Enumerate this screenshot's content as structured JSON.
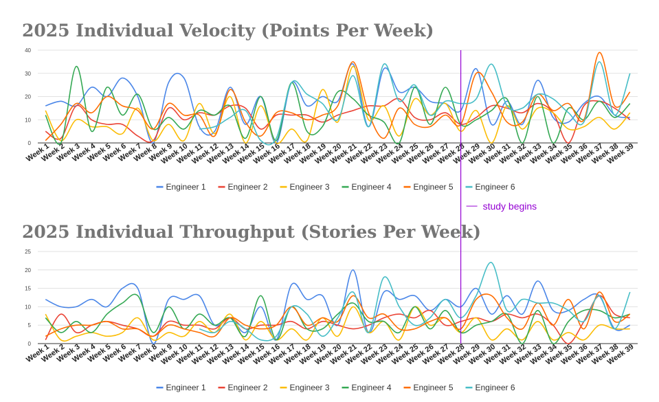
{
  "annotation": {
    "label": "study begins",
    "color": "#9400d3",
    "at_category": "Week 28"
  },
  "series_colors": [
    "#4a86e8",
    "#ea4335",
    "#fbbc04",
    "#34a853",
    "#ff6d01",
    "#46bdc6"
  ],
  "chart_data": [
    {
      "type": "line",
      "title": "2025 Individual Velocity (Points Per Week)",
      "xlabel": "",
      "ylabel": "",
      "ylim": [
        0,
        40
      ],
      "yticks": [
        0,
        10,
        20,
        30,
        40
      ],
      "grid": true,
      "legend": "bottom",
      "categories": [
        "Week 1",
        "Week 2",
        "Week 3",
        "Week 4",
        "Week 5",
        "Week 6",
        "Week 7",
        "Week 8",
        "Week 9",
        "Week 10",
        "Week 11",
        "Week 12",
        "Week 13",
        "Week 14",
        "Week 15",
        "Week 16",
        "Week 17",
        "Week 18",
        "Week 19",
        "Week 20",
        "Week 21",
        "Week 22",
        "Week 23",
        "Week 24",
        "Week 25",
        "Week 26",
        "Week 27",
        "Week 28",
        "Week 29",
        "Week 30",
        "Week 31",
        "Week 32",
        "Week 33",
        "Week 34",
        "Week 35",
        "Week 36",
        "Week 37",
        "Week 38",
        "Week 39"
      ],
      "series": [
        {
          "name": "Engineer 1",
          "values": [
            16,
            18,
            16,
            24,
            20,
            28,
            20,
            0,
            26,
            28,
            7,
            5,
            24,
            8,
            20,
            0,
            26,
            16,
            20,
            18,
            34,
            7,
            32,
            22,
            24,
            18,
            17,
            14,
            32,
            8,
            18,
            8,
            27,
            11,
            9,
            17,
            20,
            12,
            11
          ]
        },
        {
          "name": "Engineer 2",
          "values": [
            5,
            2,
            16,
            10,
            8,
            8,
            3,
            1,
            15,
            10,
            13,
            12,
            16,
            15,
            6,
            12,
            12,
            12,
            9,
            12,
            14,
            16,
            16,
            19,
            11,
            10,
            13,
            8,
            11,
            16,
            15,
            13,
            17,
            13,
            0,
            16,
            18,
            15,
            10
          ]
        },
        {
          "name": "Engineer 3",
          "values": [
            14,
            1,
            10,
            7,
            7,
            4,
            15,
            1,
            8,
            1,
            17,
            4,
            20,
            0,
            16,
            0,
            6,
            1,
            23,
            9,
            33,
            10,
            16,
            3,
            19,
            12,
            17,
            5,
            14,
            0,
            16,
            6,
            15,
            13,
            6,
            7,
            11,
            6,
            13
          ]
        },
        {
          "name": "Engineer 4",
          "values": [
            12,
            0,
            33,
            5,
            24,
            12,
            21,
            6,
            11,
            6,
            14,
            12,
            16,
            2,
            20,
            1,
            26,
            5,
            7,
            22,
            19,
            12,
            9,
            0,
            24,
            8,
            24,
            8,
            10,
            14,
            19,
            0,
            20,
            0,
            15,
            10,
            18,
            11,
            17
          ]
        },
        {
          "name": "Engineer 5",
          "values": [
            1,
            8,
            17,
            13,
            20,
            16,
            14,
            6,
            17,
            12,
            12,
            3,
            23,
            9,
            3,
            13,
            13,
            10,
            12,
            16,
            35,
            13,
            2,
            15,
            8,
            7,
            12,
            8,
            30,
            22,
            9,
            9,
            21,
            14,
            17,
            10,
            39,
            16,
            22
          ]
        },
        {
          "name": "Engineer 6",
          "values": [
            null,
            null,
            null,
            null,
            null,
            null,
            null,
            null,
            null,
            null,
            6,
            7,
            11,
            14,
            1,
            2,
            26,
            21,
            17,
            10,
            29,
            7,
            34,
            18,
            25,
            12,
            18,
            17,
            19,
            34,
            16,
            15,
            21,
            19,
            13,
            9,
            35,
            12,
            30
          ]
        }
      ]
    },
    {
      "type": "line",
      "title": "2025 Individual Throughput (Stories Per Week)",
      "xlabel": "",
      "ylabel": "",
      "ylim": [
        0,
        25
      ],
      "yticks": [
        0,
        5,
        10,
        15,
        20,
        25
      ],
      "grid": true,
      "legend": "bottom",
      "categories": [
        "Week 1",
        "Week 2",
        "Week 3",
        "Week 4",
        "Week 5",
        "Week 6",
        "Week 7",
        "Week 8",
        "Week 9",
        "Week 10",
        "Week 11",
        "Week 12",
        "Week 13",
        "Week 14",
        "Week 15",
        "Week 16",
        "Week 17",
        "Week 18",
        "Week 19",
        "Week 20",
        "Week 21",
        "Week 22",
        "Week 23",
        "Week 24",
        "Week 25",
        "Week 26",
        "Week 27",
        "Week 28",
        "Week 29",
        "Week 30",
        "Week 31",
        "Week 32",
        "Week 33",
        "Week 34",
        "Week 35",
        "Week 36",
        "Week 37",
        "Week 38",
        "Week 39"
      ],
      "series": [
        {
          "name": "Engineer 1",
          "values": [
            12,
            10,
            10,
            12,
            10,
            15,
            15,
            0,
            12,
            12,
            13,
            5,
            7,
            3,
            10,
            1,
            16,
            12,
            13,
            5,
            20,
            3,
            14,
            12,
            13,
            9,
            12,
            10,
            15,
            8,
            13,
            8,
            17,
            9,
            9,
            12,
            13,
            4,
            5
          ]
        },
        {
          "name": "Engineer 2",
          "values": [
            1,
            8,
            3,
            5,
            6,
            5,
            4,
            2,
            6,
            5,
            5,
            4,
            7,
            4,
            5,
            5,
            6,
            4,
            6,
            5,
            4,
            5,
            7,
            8,
            7,
            9,
            5,
            6,
            7,
            6,
            8,
            7,
            8,
            5,
            0,
            6,
            13,
            8,
            7
          ]
        },
        {
          "name": "Engineer 3",
          "values": [
            8,
            1,
            2,
            3,
            2,
            3,
            7,
            1,
            3,
            2,
            6,
            3,
            8,
            1,
            6,
            1,
            4,
            1,
            7,
            2,
            10,
            3,
            6,
            1,
            10,
            5,
            7,
            3,
            7,
            1,
            4,
            1,
            6,
            1,
            3,
            1,
            5,
            4,
            4
          ]
        },
        {
          "name": "Engineer 4",
          "values": [
            7,
            3,
            6,
            3,
            8,
            11,
            13,
            3,
            10,
            4,
            8,
            5,
            7,
            2,
            13,
            1,
            10,
            4,
            4,
            8,
            11,
            6,
            6,
            3,
            10,
            4,
            9,
            3,
            5,
            6,
            8,
            0,
            9,
            0,
            6,
            9,
            9,
            7,
            8
          ]
        },
        {
          "name": "Engineer 5",
          "values": [
            2,
            4,
            5,
            5,
            6,
            4,
            4,
            2,
            5,
            4,
            3,
            2,
            7,
            5,
            4,
            5,
            10,
            5,
            7,
            6,
            13,
            7,
            8,
            4,
            4,
            6,
            7,
            4,
            12,
            13,
            7,
            4,
            11,
            5,
            12,
            4,
            14,
            6,
            8
          ]
        },
        {
          "name": "Engineer 6",
          "values": [
            null,
            null,
            null,
            null,
            null,
            null,
            null,
            null,
            null,
            null,
            4,
            3,
            6,
            4,
            1,
            2,
            10,
            8,
            2,
            7,
            14,
            3,
            18,
            10,
            5,
            7,
            12,
            7,
            13,
            22,
            9,
            12,
            11,
            11,
            9,
            6,
            13,
            4,
            14
          ]
        }
      ]
    }
  ]
}
